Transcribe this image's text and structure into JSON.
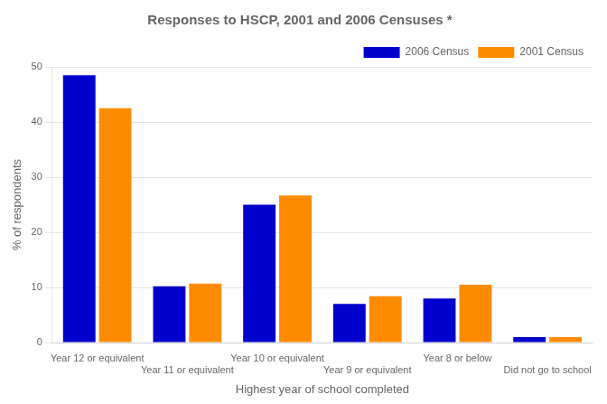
{
  "chart_data": {
    "type": "bar",
    "title": "Responses to HSCP, 2001 and 2006 Censuses *",
    "xlabel": "Highest year of school completed",
    "ylabel": "% of respondents",
    "categories": [
      "Year 12 or equivalent",
      "Year 11 or equivalent",
      "Year 10 or equivalent",
      "Year 9 or equivalent",
      "Year 8 or below",
      "Did not go to school"
    ],
    "series": [
      {
        "name": "2006 Census",
        "color": "#0000CC",
        "values": [
          48.5,
          10.2,
          25.0,
          7.0,
          8.0,
          1.0
        ]
      },
      {
        "name": "2001 Census",
        "color": "#FF8C00",
        "values": [
          42.5,
          10.7,
          26.7,
          8.4,
          10.5,
          1.0
        ]
      }
    ],
    "ylim": [
      0,
      50
    ],
    "yticks": [
      0,
      10,
      20,
      30,
      40,
      50
    ],
    "grid": true,
    "legend": "upper right"
  }
}
